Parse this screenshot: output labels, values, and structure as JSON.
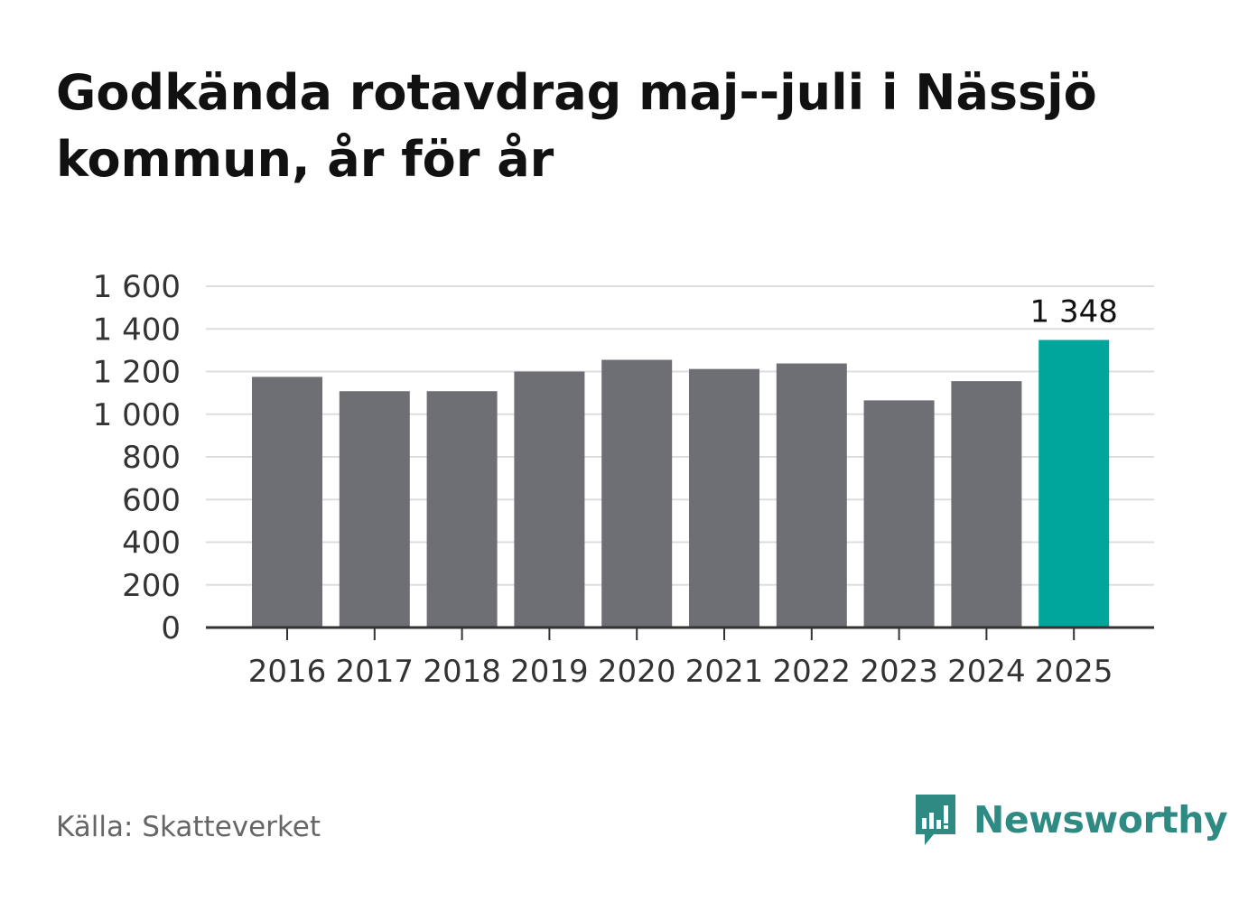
{
  "title": "Godkända rotavdrag maj--juli i Nässjö kommun, år för år",
  "source": "Källa: Skatteverket",
  "brand": {
    "name": "Newsworthy",
    "icon": "newsworthy-logo-icon",
    "color": "#2e8a82"
  },
  "colors": {
    "bar": "#6e6e75",
    "highlight": "#00a69b",
    "grid": "#dddddd",
    "axis": "#333333"
  },
  "chart_data": {
    "type": "bar",
    "title": "Godkända rotavdrag maj--juli i Nässjö kommun, år för år",
    "categories": [
      "2016",
      "2017",
      "2018",
      "2019",
      "2020",
      "2021",
      "2022",
      "2023",
      "2024",
      "2025"
    ],
    "values": [
      1175,
      1108,
      1108,
      1200,
      1255,
      1212,
      1238,
      1065,
      1155,
      1348
    ],
    "highlight_index": 9,
    "data_labels": [
      {
        "index": 9,
        "text": "1 348"
      }
    ],
    "ylim": [
      0,
      1600
    ],
    "yticks": [
      {
        "value": 0,
        "label": "0"
      },
      {
        "value": 200,
        "label": "200"
      },
      {
        "value": 400,
        "label": "400"
      },
      {
        "value": 600,
        "label": "600"
      },
      {
        "value": 800,
        "label": "800"
      },
      {
        "value": 1000,
        "label": "1 000"
      },
      {
        "value": 1200,
        "label": "1 200"
      },
      {
        "value": 1400,
        "label": "1 400"
      },
      {
        "value": 1600,
        "label": "1 600"
      }
    ],
    "xlabel": "",
    "ylabel": "",
    "grid": true,
    "legend": "none"
  }
}
